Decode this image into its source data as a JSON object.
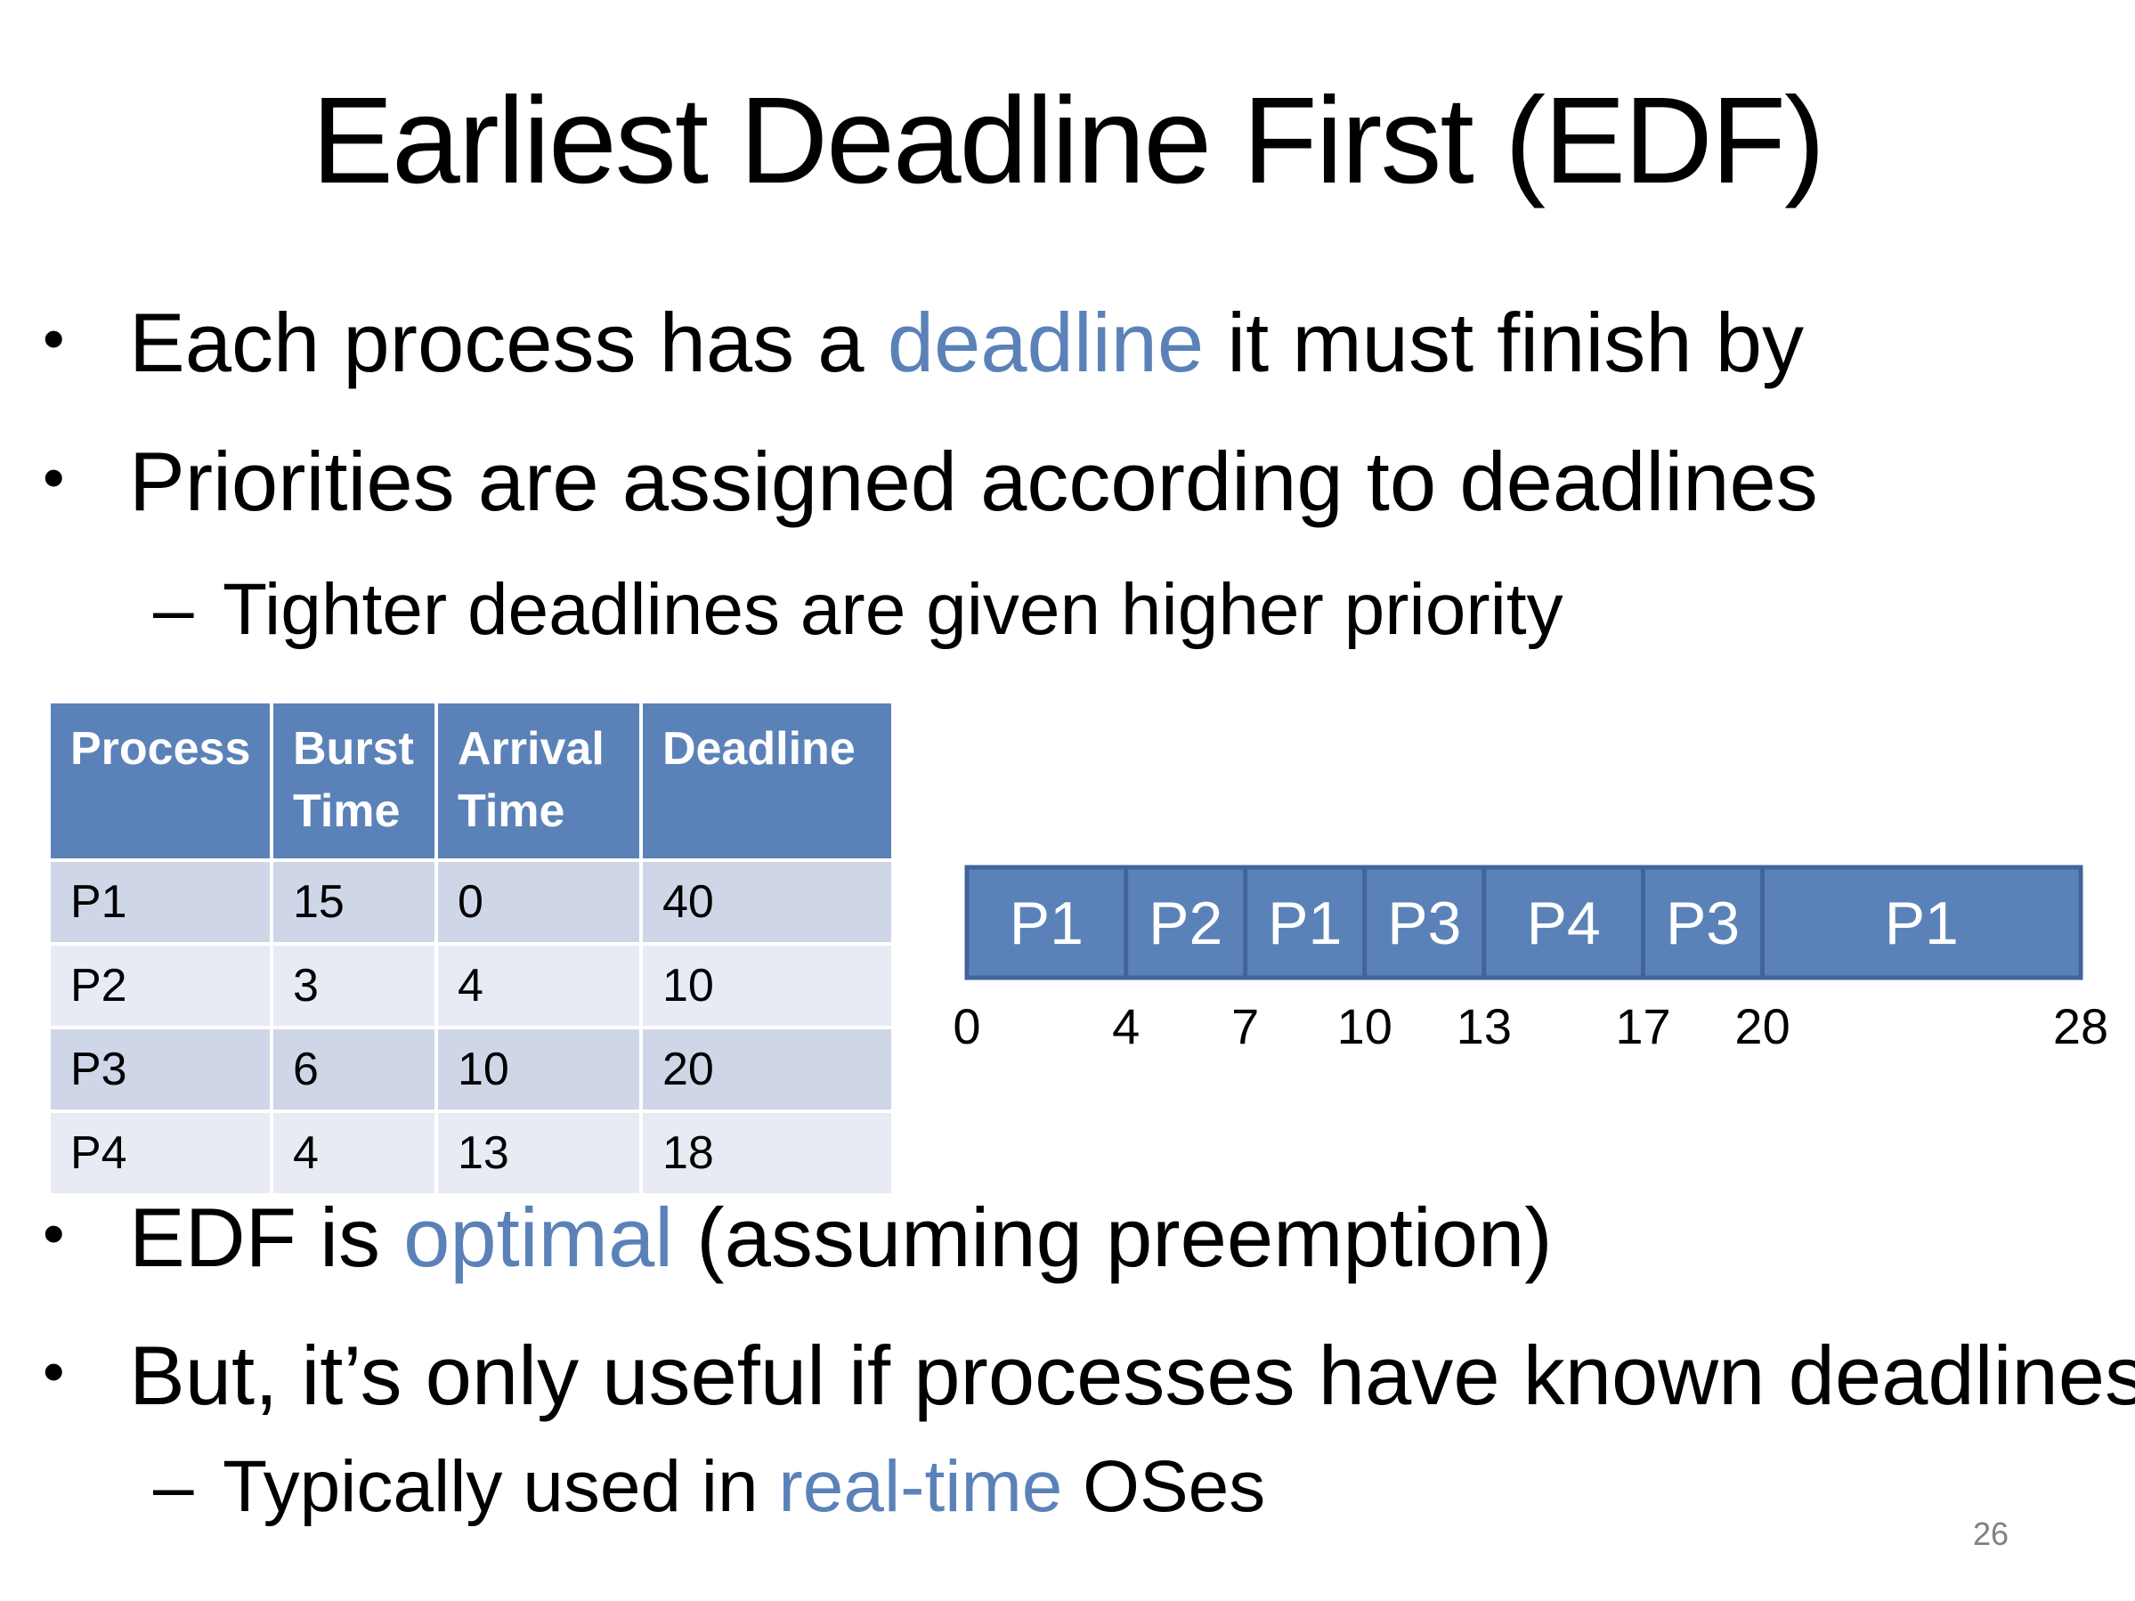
{
  "title": "Earliest Deadline First (EDF)",
  "bullets_top": {
    "b1": {
      "pre": "Each process has a ",
      "accent": "deadline",
      "post": " it must finish by"
    },
    "b2": "Priorities are assigned according to deadlines",
    "sub": "Tighter deadlines are given higher priority"
  },
  "markers": {
    "bullet": "•",
    "dash": "–"
  },
  "table": {
    "headers": [
      [
        "Process"
      ],
      [
        "Burst",
        "Time"
      ],
      [
        "Arrival",
        "Time"
      ],
      [
        "Deadline"
      ]
    ],
    "rows": [
      [
        "P1",
        "15",
        "0",
        "40"
      ],
      [
        "P2",
        "3",
        "4",
        "10"
      ],
      [
        "P3",
        "6",
        "10",
        "20"
      ],
      [
        "P4",
        "4",
        "13",
        "18"
      ]
    ]
  },
  "chart_data": {
    "type": "gantt",
    "segments": [
      {
        "label": "P1",
        "start": 0,
        "end": 4
      },
      {
        "label": "P2",
        "start": 4,
        "end": 7
      },
      {
        "label": "P1",
        "start": 7,
        "end": 10
      },
      {
        "label": "P3",
        "start": 10,
        "end": 13
      },
      {
        "label": "P4",
        "start": 13,
        "end": 17
      },
      {
        "label": "P3",
        "start": 17,
        "end": 20
      },
      {
        "label": "P1",
        "start": 20,
        "end": 28
      }
    ],
    "ticks": [
      0,
      4,
      7,
      10,
      13,
      17,
      20,
      28
    ],
    "fill_color": "#5b82b8",
    "border_color": "#41659a"
  },
  "bullets_bottom": {
    "b1": {
      "pre": "EDF is ",
      "accent": "optimal",
      "post": " (assuming preemption)"
    },
    "b2": "But, it’s only useful if processes have known deadlines",
    "sub": {
      "pre": "Typically used in ",
      "accent": "real-time",
      "post": " OSes"
    }
  },
  "page_number": "26",
  "colors": {
    "accent": "#5b82b8",
    "table_header": "#5b82b8",
    "row_odd": "#cfd6e8",
    "row_even": "#e8ebf4"
  }
}
